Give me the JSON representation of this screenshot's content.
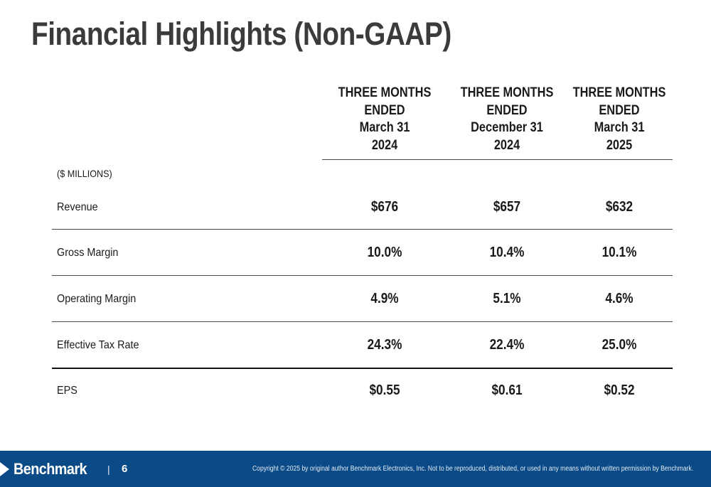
{
  "title": "Financial Highlights (Non-GAAP)",
  "columns": [
    {
      "line1": "THREE MONTHS",
      "line2": "ENDED",
      "line3": "March 31",
      "line4": "2024"
    },
    {
      "line1": "THREE MONTHS",
      "line2": "ENDED",
      "line3": "December 31",
      "line4": "2024"
    },
    {
      "line1": "THREE MONTHS",
      "line2": "ENDED",
      "line3": "March 31",
      "line4": "2025"
    }
  ],
  "units": "($ MILLIONS)",
  "rows": [
    {
      "label": "Revenue",
      "values": [
        "$676",
        "$657",
        "$632"
      ]
    },
    {
      "label": "Gross Margin",
      "values": [
        "10.0%",
        "10.4%",
        "10.1%"
      ]
    },
    {
      "label": "Operating Margin",
      "values": [
        "4.9%",
        "5.1%",
        "4.6%"
      ]
    },
    {
      "label": "Effective Tax Rate",
      "values": [
        "24.3%",
        "22.4%",
        "25.0%"
      ]
    },
    {
      "label": "EPS",
      "values": [
        "$0.55",
        "$0.61",
        "$0.52"
      ]
    }
  ],
  "footer": {
    "logo": "Benchmark",
    "separator": "|",
    "page": "6",
    "copyright": "Copyright © 2025 by original author Benchmark Electronics, Inc. Not to be reproduced, distributed, or used in any means without written permission by Benchmark.",
    "background_color": "#0a4a86"
  }
}
